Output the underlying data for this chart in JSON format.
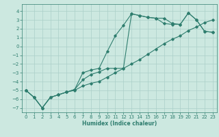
{
  "xlabel": "Humidex (Indice chaleur)",
  "background_color": "#cce8e0",
  "grid_color": "#aacfc8",
  "line_color": "#2e7d6e",
  "xlim": [
    -0.5,
    23.5
  ],
  "ylim": [
    -7.5,
    4.8
  ],
  "xticks": [
    0,
    1,
    2,
    3,
    4,
    5,
    6,
    7,
    8,
    9,
    10,
    11,
    12,
    13,
    14,
    15,
    16,
    17,
    18,
    19,
    20,
    21,
    22,
    23
  ],
  "yticks": [
    -7,
    -6,
    -5,
    -4,
    -3,
    -2,
    -1,
    0,
    1,
    2,
    3,
    4
  ],
  "line1_x": [
    0,
    1,
    2,
    3,
    4,
    5,
    6,
    7,
    8,
    9,
    10,
    11,
    12,
    13,
    14,
    15,
    16,
    17,
    18,
    19,
    20,
    21,
    22,
    23
  ],
  "line1_y": [
    -5.0,
    -5.8,
    -7.0,
    -5.8,
    -5.5,
    -5.2,
    -4.9,
    -3.0,
    -2.7,
    -2.5,
    -0.6,
    1.2,
    2.4,
    3.7,
    3.5,
    3.3,
    3.2,
    2.6,
    2.5,
    2.5,
    3.8,
    3.0,
    1.7,
    1.6
  ],
  "line2_x": [
    0,
    1,
    2,
    3,
    4,
    5,
    6,
    7,
    8,
    9,
    10,
    11,
    12,
    13,
    14,
    15,
    16,
    17,
    18,
    19,
    20,
    21,
    22,
    23
  ],
  "line2_y": [
    -5.0,
    -5.8,
    -7.0,
    -5.8,
    -5.5,
    -5.2,
    -4.9,
    -3.8,
    -3.2,
    -2.9,
    -2.5,
    -2.5,
    -2.5,
    3.7,
    3.5,
    3.3,
    3.2,
    3.2,
    2.6,
    2.5,
    3.8,
    3.0,
    1.7,
    1.6
  ],
  "line3_x": [
    0,
    1,
    2,
    3,
    4,
    5,
    6,
    7,
    8,
    9,
    10,
    11,
    12,
    13,
    14,
    15,
    16,
    17,
    18,
    19,
    20,
    21,
    22,
    23
  ],
  "line3_y": [
    -5.0,
    -5.8,
    -7.0,
    -5.8,
    -5.5,
    -5.2,
    -5.0,
    -4.5,
    -4.2,
    -4.0,
    -3.5,
    -3.0,
    -2.5,
    -2.0,
    -1.5,
    -0.9,
    -0.3,
    0.3,
    0.8,
    1.2,
    1.8,
    2.2,
    2.7,
    3.0
  ],
  "marker": "D",
  "markersize": 1.8,
  "linewidth": 0.8,
  "tick_fontsize": 5.0,
  "xlabel_fontsize": 5.5
}
